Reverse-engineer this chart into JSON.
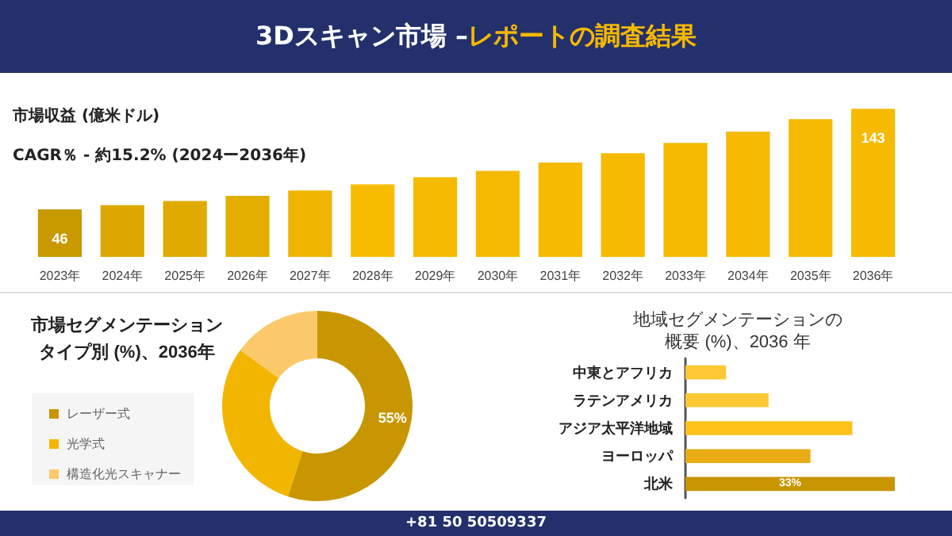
{
  "chart_data": [
    {
      "type": "bar",
      "title": "3Dスキャン市場 –レポートの調査結果",
      "ylabel": "市場収益 (億米ドル)",
      "subtitle": "CAGR％ - 約15.2% (2024ー2036年)",
      "annotations": [
        "+81 50 50509337"
      ],
      "categories": [
        "2023年",
        "2024年",
        "2025年",
        "2026年",
        "2027年",
        "2028年",
        "2029年",
        "2030年",
        "2031年",
        "2032年",
        "2033年",
        "2034年",
        "2035年",
        "2036年"
      ],
      "values": [
        46,
        50,
        54,
        59,
        64,
        70,
        77,
        83,
        91,
        100,
        110,
        121,
        133,
        143
      ],
      "value_labels": [
        "46",
        null,
        null,
        null,
        null,
        null,
        null,
        null,
        null,
        null,
        null,
        null,
        null,
        "143"
      ],
      "colors": [
        "#c89a00",
        "#dca800",
        "#e0aa00",
        "#e4ae00",
        "#eeb400",
        "#f9bd00",
        "#f6ba00",
        "#f6ba00",
        "#f6ba00",
        "#f6ba00",
        "#f6ba00",
        "#f6ba00",
        "#f6ba00",
        "#f6ba00"
      ]
    },
    {
      "type": "donut",
      "title": "市場セグメンテーションタイプ別 (%)、2036年",
      "legend": "left",
      "categories": [
        "レーザー式",
        "光学式",
        "構造化光スキャナー"
      ],
      "values": [
        55,
        30,
        15
      ],
      "value_labels": [
        "55%",
        null,
        null
      ],
      "colors": [
        "#c89600",
        "#f2b600",
        "#fcc96a"
      ]
    },
    {
      "type": "bar",
      "orientation": "horizontal",
      "title": "地域セグメンテーションの概要 (%)、2036 年",
      "categories": [
        "中東とアフリカ",
        "ラテンアメリカ",
        "アジア太平洋地域",
        "ヨーロッパ",
        "北米"
      ],
      "values": [
        6.4,
        13.1,
        26.3,
        19.7,
        33
      ],
      "value_labels": [
        null,
        null,
        null,
        null,
        "33%"
      ],
      "colors": [
        "#fdc833",
        "#fdc833",
        "#fcc21a",
        "#e8ad14",
        "#c89600"
      ]
    }
  ]
}
